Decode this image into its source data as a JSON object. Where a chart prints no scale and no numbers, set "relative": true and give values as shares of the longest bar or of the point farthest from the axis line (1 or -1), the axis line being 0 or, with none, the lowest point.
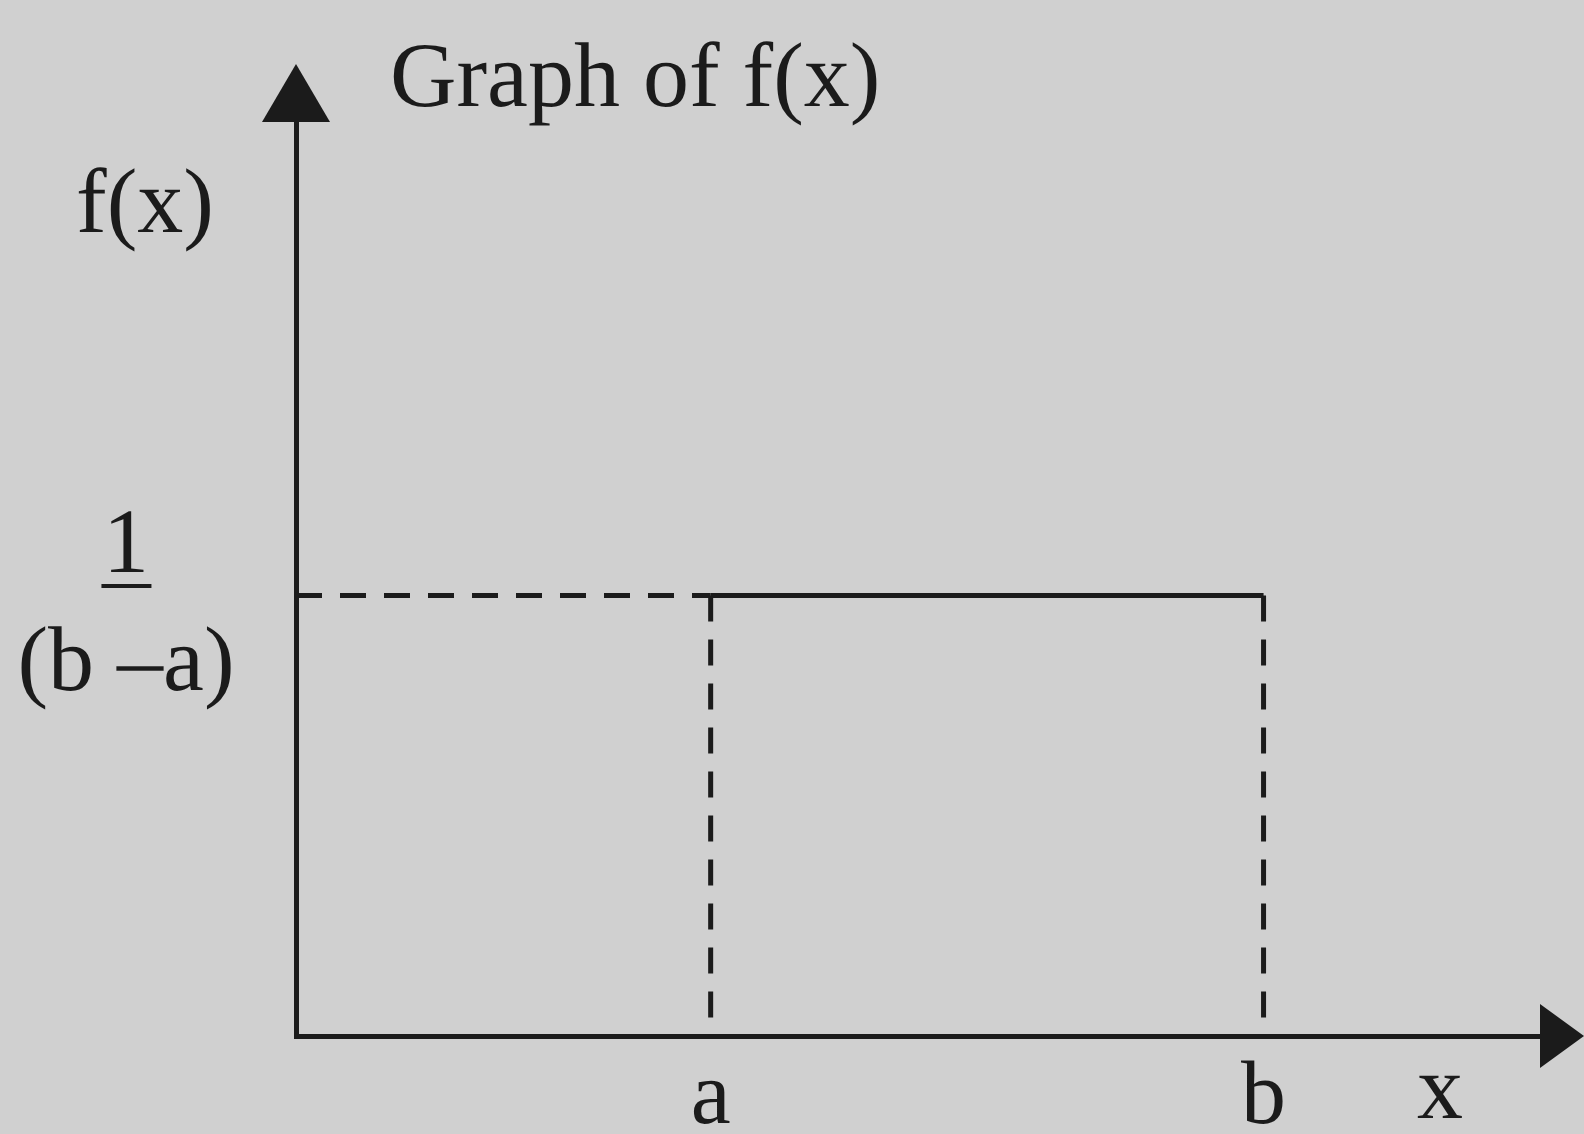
{
  "chart_data": {
    "type": "line",
    "title": "Graph of f(x)",
    "xlabel": "x",
    "ylabel": "f(x)",
    "relative": true,
    "marker": "none",
    "categories": [
      null,
      null,
      null,
      "a",
      null,
      null,
      null,
      "b",
      null,
      null
    ],
    "annotations": [
      "1",
      "(b –a)"
    ],
    "series": [
      {
        "values": [
          null,
          null,
          null,
          1,
          1,
          1,
          1,
          1,
          null,
          null
        ],
        "color": "#1b1b1b",
        "line_style": "solid"
      },
      {
        "values": [
          1,
          1,
          1,
          1,
          null,
          null,
          null,
          null,
          null,
          null
        ],
        "color": "#1b1b1b",
        "line_style": "dashed"
      },
      {
        "x": [
          "a",
          "a"
        ],
        "values": [
          1,
          0
        ],
        "color": "#1b1b1b",
        "line_style": "dashed"
      },
      {
        "x": [
          "b",
          "b"
        ],
        "values": [
          1,
          0
        ],
        "color": "#1b1b1b",
        "line_style": "dashed"
      }
    ]
  }
}
